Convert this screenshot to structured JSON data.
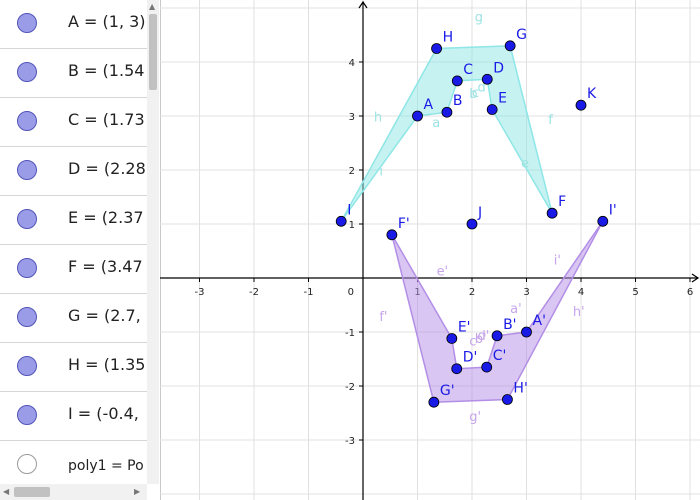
{
  "algebra": {
    "items": [
      {
        "text": "A = (1, 3)",
        "open": false
      },
      {
        "text": "B = (1.54",
        "open": false
      },
      {
        "text": "C = (1.73",
        "open": false
      },
      {
        "text": "D = (2.28",
        "open": false
      },
      {
        "text": "E = (2.37",
        "open": false
      },
      {
        "text": "F = (3.47",
        "open": false
      },
      {
        "text": "G = (2.7,",
        "open": false
      },
      {
        "text": "H = (1.35",
        "open": false
      },
      {
        "text": "I = (-0.4,",
        "open": false
      },
      {
        "text": "poly1 = Po",
        "open": true
      }
    ]
  },
  "graph": {
    "xlim": [
      -3.5,
      6.2
    ],
    "ylim": [
      -4.0,
      5.0
    ],
    "x_ticks": [
      "-3",
      "-2",
      "-1",
      "1",
      "2",
      "3",
      "4",
      "5",
      "6"
    ],
    "y_ticks": [
      "-3",
      "-2",
      "-1",
      "1",
      "2",
      "3",
      "4"
    ],
    "origin_label": "0",
    "colors": {
      "point": "#1a1ae6",
      "poly1": "#8ee6e6",
      "poly2": "#b38ee6",
      "poly1_label": "#9fe3e3",
      "poly2_label": "#c7a6ec",
      "grid": "#e0e0e0"
    },
    "points": [
      {
        "name": "A",
        "x": 1.0,
        "y": 3.0
      },
      {
        "name": "B",
        "x": 1.54,
        "y": 3.07
      },
      {
        "name": "C",
        "x": 1.73,
        "y": 3.65
      },
      {
        "name": "D",
        "x": 2.28,
        "y": 3.68
      },
      {
        "name": "E",
        "x": 2.37,
        "y": 3.12
      },
      {
        "name": "F",
        "x": 3.47,
        "y": 1.2
      },
      {
        "name": "G",
        "x": 2.7,
        "y": 4.3
      },
      {
        "name": "H",
        "x": 1.35,
        "y": 4.25
      },
      {
        "name": "I",
        "x": -0.4,
        "y": 1.05
      },
      {
        "name": "J",
        "x": 2.0,
        "y": 1.0
      },
      {
        "name": "K",
        "x": 4.0,
        "y": 3.2
      },
      {
        "name": "A'",
        "x": 3.0,
        "y": -1.0
      },
      {
        "name": "B'",
        "x": 2.46,
        "y": -1.07
      },
      {
        "name": "C'",
        "x": 2.27,
        "y": -1.65
      },
      {
        "name": "D'",
        "x": 1.72,
        "y": -1.68
      },
      {
        "name": "E'",
        "x": 1.63,
        "y": -1.12
      },
      {
        "name": "F'",
        "x": 0.53,
        "y": 0.8
      },
      {
        "name": "G'",
        "x": 1.3,
        "y": -2.3
      },
      {
        "name": "H'",
        "x": 2.65,
        "y": -2.25
      },
      {
        "name": "I'",
        "x": 4.4,
        "y": 1.05
      }
    ],
    "poly1": [
      "I",
      "A",
      "B",
      "C",
      "D",
      "E",
      "F",
      "G",
      "H"
    ],
    "poly2": [
      "I'",
      "A'",
      "B'",
      "C'",
      "D'",
      "E'",
      "F'",
      "G'",
      "H'"
    ],
    "poly1_edges": [
      {
        "label": "g",
        "x": 2.05,
        "y": 4.75
      },
      {
        "label": "h",
        "x": 0.2,
        "y": 2.9
      },
      {
        "label": "a",
        "x": 1.27,
        "y": 2.8
      },
      {
        "label": "b",
        "x": 1.95,
        "y": 3.33
      },
      {
        "label": "c",
        "x": 2.0,
        "y": 3.35
      },
      {
        "label": "d",
        "x": 2.1,
        "y": 3.45
      },
      {
        "label": "f",
        "x": 3.4,
        "y": 2.85
      },
      {
        "label": "e",
        "x": 2.9,
        "y": 2.05
      },
      {
        "label": "i",
        "x": 0.3,
        "y": 1.9
      }
    ],
    "poly2_edges": [
      {
        "label": "e'",
        "x": 1.35,
        "y": 0.05
      },
      {
        "label": "f'",
        "x": 0.3,
        "y": -0.8
      },
      {
        "label": "i'",
        "x": 3.5,
        "y": 0.25
      },
      {
        "label": "h'",
        "x": 3.85,
        "y": -0.7
      },
      {
        "label": "a'",
        "x": 2.7,
        "y": -0.65
      },
      {
        "label": "g'",
        "x": 1.95,
        "y": -2.65
      },
      {
        "label": "b'",
        "x": 2.05,
        "y": -1.2
      },
      {
        "label": "c'",
        "x": 1.95,
        "y": -1.25
      },
      {
        "label": "d'",
        "x": 2.1,
        "y": -1.15
      }
    ]
  }
}
